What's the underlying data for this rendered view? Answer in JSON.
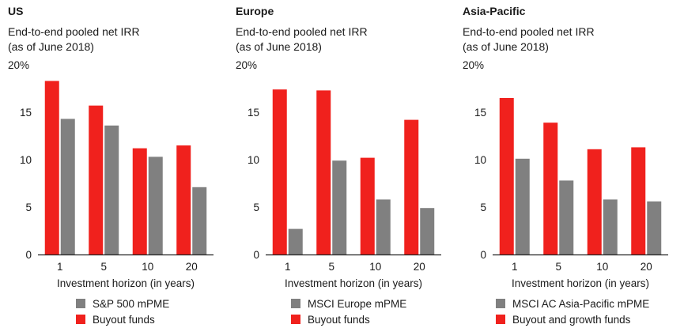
{
  "colors": {
    "buyout": "#f0211d",
    "mpme": "#808080",
    "axis": "#222222"
  },
  "chart_data": [
    {
      "type": "bar",
      "title": "US",
      "subtitle": [
        "End-to-end pooled net IRR",
        "(as of June 2018)"
      ],
      "categories": [
        "1",
        "5",
        "10",
        "20"
      ],
      "xlabel": "Investment horizon (in years)",
      "ylabel": "",
      "ylim": [
        0,
        20
      ],
      "yticks": [
        "0",
        "5",
        "10",
        "15",
        "20%"
      ],
      "series": [
        {
          "name": "Buyout funds",
          "key": "buyout",
          "values": [
            18.3,
            15.7,
            11.2,
            11.5
          ]
        },
        {
          "name": "S&P 500 mPME",
          "key": "mpme",
          "values": [
            14.3,
            13.6,
            10.3,
            7.1
          ]
        }
      ],
      "legend": [
        {
          "label": "S&P 500 mPME",
          "key": "mpme"
        },
        {
          "label": "Buyout funds",
          "key": "buyout"
        }
      ]
    },
    {
      "type": "bar",
      "title": "Europe",
      "subtitle": [
        "End-to-end pooled net IRR",
        "(as of June 2018)"
      ],
      "categories": [
        "1",
        "5",
        "10",
        "20"
      ],
      "xlabel": "Investment horizon (in years)",
      "ylabel": "",
      "ylim": [
        0,
        20
      ],
      "yticks": [
        "0",
        "5",
        "10",
        "15",
        "20%"
      ],
      "series": [
        {
          "name": "Buyout funds",
          "key": "buyout",
          "values": [
            17.4,
            17.3,
            10.2,
            14.2
          ]
        },
        {
          "name": "MSCI Europe mPME",
          "key": "mpme",
          "values": [
            2.7,
            9.9,
            5.8,
            4.9
          ]
        }
      ],
      "legend": [
        {
          "label": "MSCI Europe mPME",
          "key": "mpme"
        },
        {
          "label": "Buyout funds",
          "key": "buyout"
        }
      ]
    },
    {
      "type": "bar",
      "title": "Asia-Pacific",
      "subtitle": [
        "End-to-end pooled net IRR",
        "(as of June 2018)"
      ],
      "categories": [
        "1",
        "5",
        "10",
        "20"
      ],
      "xlabel": "Investment horizon (in years)",
      "ylabel": "",
      "ylim": [
        0,
        20
      ],
      "yticks": [
        "0",
        "5",
        "10",
        "15",
        "20%"
      ],
      "series": [
        {
          "name": "Buyout and growth funds",
          "key": "buyout",
          "values": [
            16.5,
            13.9,
            11.1,
            11.3
          ]
        },
        {
          "name": "MSCI AC Asia-Pacific mPME",
          "key": "mpme",
          "values": [
            10.1,
            7.8,
            5.8,
            5.6
          ]
        }
      ],
      "legend": [
        {
          "label": "MSCI AC Asia-Pacific mPME",
          "key": "mpme"
        },
        {
          "label": "Buyout and growth funds",
          "key": "buyout"
        }
      ]
    }
  ]
}
